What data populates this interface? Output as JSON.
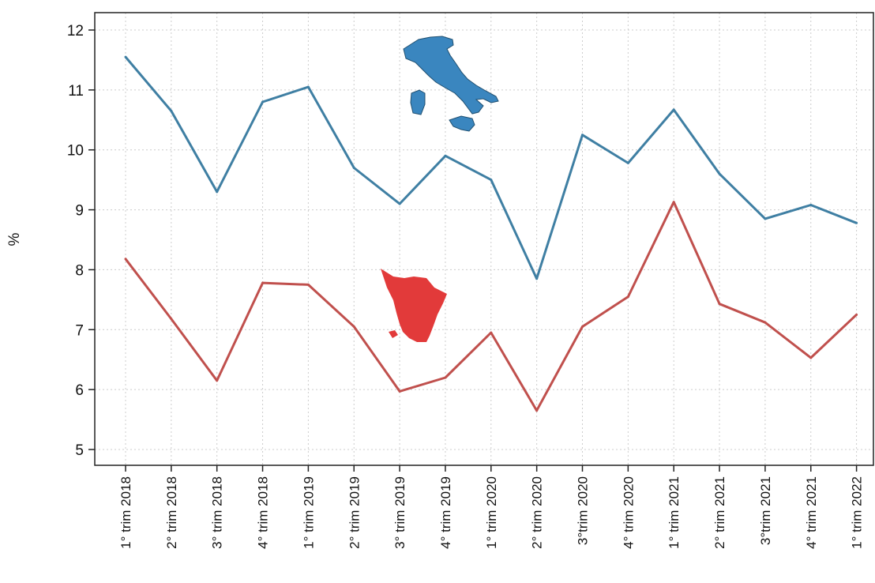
{
  "chart_data": {
    "type": "line",
    "title": "",
    "xlabel": "",
    "ylabel": "%",
    "ylim": [
      5,
      12
    ],
    "yticks": [
      5,
      6,
      7,
      8,
      9,
      10,
      11,
      12
    ],
    "grid": true,
    "categories": [
      "1° trim 2018",
      "2° trim 2018",
      "3° trim 2018",
      "4° trim 2018",
      "1° trim 2019",
      "2° trim 2019",
      "3° trim 2019",
      "4° trim 2019",
      "1° trim 2020",
      "2° trim 2020",
      "3°trim 2020",
      "4° trim 2020",
      "1° trim 2021",
      "2° trim 2021",
      "3°trim 2021",
      "4° trim 2021",
      "1° trim 2022"
    ],
    "series": [
      {
        "color": "#3f7fa3",
        "marker_icon": "italy-map-icon",
        "values": [
          11.55,
          10.65,
          9.3,
          10.8,
          11.05,
          9.7,
          9.1,
          9.9,
          9.5,
          7.85,
          10.25,
          9.78,
          10.67,
          9.6,
          8.85,
          9.08,
          8.78
        ]
      },
      {
        "color": "#c0504d",
        "marker_icon": "tuscany-map-icon",
        "values": [
          8.18,
          7.18,
          6.15,
          7.78,
          7.75,
          7.05,
          5.97,
          6.2,
          6.95,
          5.65,
          7.05,
          7.55,
          9.13,
          7.43,
          7.12,
          6.53,
          7.25
        ]
      }
    ]
  },
  "colors": {
    "italy_map": "#3a86bf",
    "tuscany_map": "#e23a3a",
    "grid": "#cccccc",
    "axis": "#222222"
  }
}
